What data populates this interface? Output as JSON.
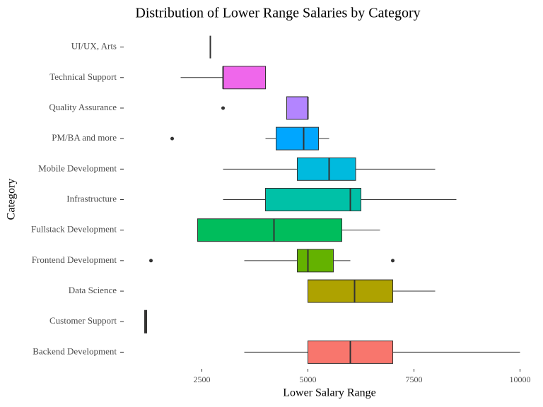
{
  "chart_data": {
    "type": "box",
    "title": "Distribution of Lower Range Salaries by Category",
    "x_label": "Lower Salary Range",
    "y_label": "Category",
    "categories": [
      "Backend Development",
      "Customer Support",
      "Data Science",
      "Frontend Development",
      "Fullstack Development",
      "Infrastructure",
      "Mobile Development",
      "PM/BA and more",
      "Quality Assurance",
      "Technical Support",
      "UI/UX, Arts"
    ],
    "colors": [
      "#F8766D",
      "#DB8E00",
      "#AEA200",
      "#64B200",
      "#00BD5C",
      "#00C1A7",
      "#00BADE",
      "#00A6FF",
      "#B385FF",
      "#EF67EB",
      "#FF63B6"
    ],
    "boxes": [
      {
        "min": 3500,
        "q1": 5000,
        "median": 6000,
        "q3": 7000,
        "max": 10000,
        "outliers": []
      },
      {
        "min": 1150,
        "q1": 1150,
        "median": 1175,
        "q3": 1200,
        "max": 1200,
        "outliers": []
      },
      {
        "min": 5000,
        "q1": 5000,
        "median": 6100,
        "q3": 7000,
        "max": 8000,
        "outliers": []
      },
      {
        "min": 3500,
        "q1": 4750,
        "median": 5000,
        "q3": 5600,
        "max": 6000,
        "outliers": [
          1300,
          7000
        ]
      },
      {
        "min": 2400,
        "q1": 2400,
        "median": 4200,
        "q3": 5800,
        "max": 6700,
        "outliers": []
      },
      {
        "min": 3000,
        "q1": 4000,
        "median": 6000,
        "q3": 6250,
        "max": 8500,
        "outliers": []
      },
      {
        "min": 3000,
        "q1": 4750,
        "median": 5500,
        "q3": 6125,
        "max": 8000,
        "outliers": []
      },
      {
        "min": 4000,
        "q1": 4250,
        "median": 4900,
        "q3": 5250,
        "max": 5500,
        "outliers": [
          1800
        ]
      },
      {
        "min": 4500,
        "q1": 4500,
        "median": 5000,
        "q3": 5000,
        "max": 5000,
        "outliers": [
          3000
        ]
      },
      {
        "min": 2000,
        "q1": 3000,
        "median": 3000,
        "q3": 4000,
        "max": 4000,
        "outliers": []
      },
      {
        "min": 2700,
        "q1": 2700,
        "median": 2700,
        "q3": 2700,
        "max": 2700,
        "outliers": []
      }
    ],
    "xlim": [
      708,
      10442
    ],
    "xticks": [
      2500,
      5000,
      7500,
      10000
    ]
  }
}
